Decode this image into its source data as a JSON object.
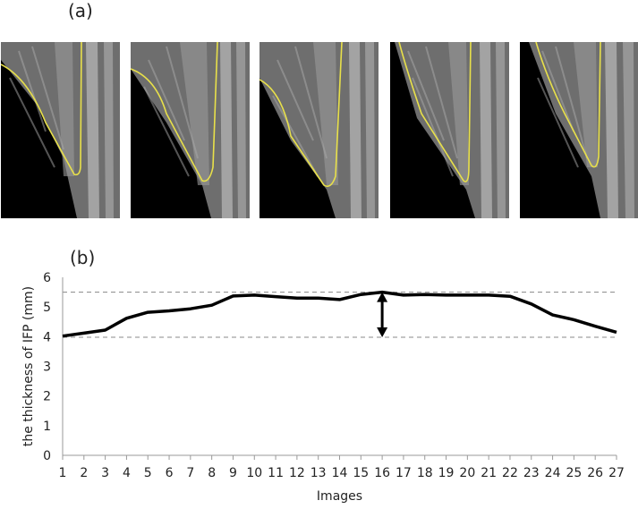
{
  "figure": {
    "panel_a_label": "(a)",
    "panel_b_label": "(b)"
  },
  "panel_a": {
    "images": [
      {
        "name": "ultrasound-image-1",
        "outline_color": "#e8e04a"
      },
      {
        "name": "ultrasound-image-2",
        "outline_color": "#e8e04a"
      },
      {
        "name": "ultrasound-image-3",
        "outline_color": "#e8e04a"
      },
      {
        "name": "ultrasound-image-4",
        "outline_color": "#e8e04a"
      },
      {
        "name": "ultrasound-image-5",
        "outline_color": "#e8e04a"
      }
    ]
  },
  "chart_data": {
    "type": "line",
    "title": "",
    "xlabel": "Images",
    "ylabel": "the thickness of IFP (mm)",
    "categories": [
      "1",
      "2",
      "3",
      "4",
      "5",
      "6",
      "7",
      "8",
      "9",
      "10",
      "11",
      "12",
      "13",
      "14",
      "15",
      "16",
      "17",
      "18",
      "19",
      "20",
      "21",
      "22",
      "23",
      "24",
      "25",
      "26",
      "27"
    ],
    "series": [
      {
        "values": [
          4.02,
          4.12,
          4.22,
          4.62,
          4.82,
          4.87,
          4.94,
          5.06,
          5.37,
          5.4,
          5.35,
          5.3,
          5.3,
          5.25,
          5.42,
          5.5,
          5.4,
          5.42,
          5.4,
          5.4,
          5.4,
          5.36,
          5.1,
          4.73,
          4.57,
          4.35,
          4.15
        ],
        "color": "#000000"
      }
    ],
    "yticks": [
      "0",
      "1",
      "2",
      "3",
      "4",
      "5",
      "6"
    ],
    "ylim": [
      0,
      6
    ],
    "reference_lines": [
      5.5,
      3.98
    ],
    "arrow": {
      "x": "16",
      "from": 3.98,
      "to": 5.5
    },
    "grid": false,
    "legend": "none"
  }
}
